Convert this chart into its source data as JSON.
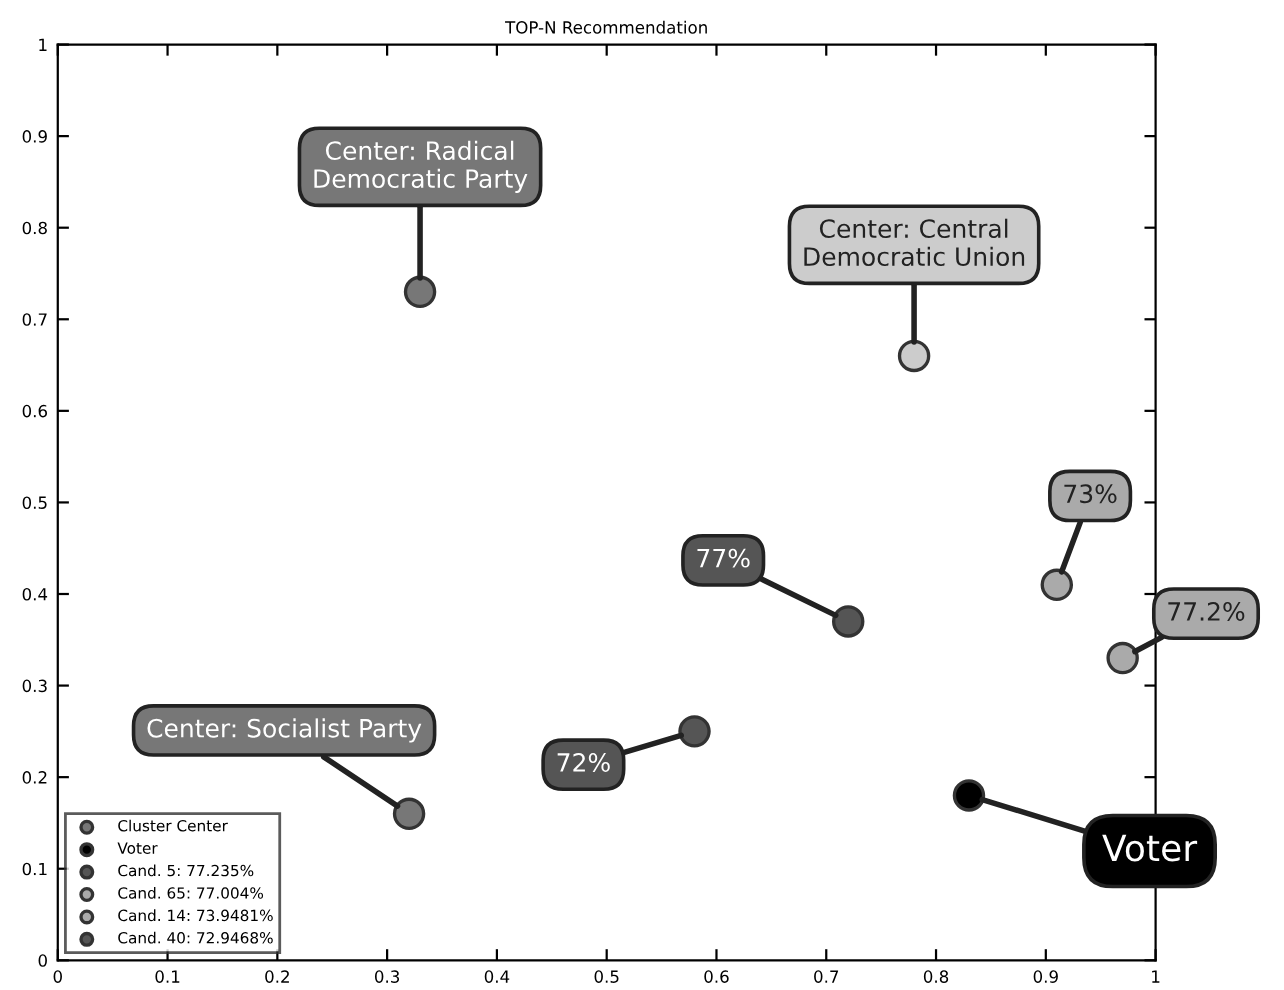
{
  "chart_data": {
    "type": "scatter",
    "title": "TOP-N Recommendation",
    "marker": "circle",
    "legend": "bottom left",
    "grid": false,
    "xlim": [
      0,
      1
    ],
    "ylim": [
      0,
      1
    ],
    "xticks": [
      0,
      0.1,
      0.2,
      0.3,
      0.4,
      0.5,
      0.6,
      0.7,
      0.8,
      0.9,
      1
    ],
    "yticks": [
      0,
      0.1,
      0.2,
      0.3,
      0.4,
      0.5,
      0.6,
      0.7,
      0.8,
      0.9,
      1
    ],
    "series": [
      {
        "name": "Cluster Center",
        "color": "#777777",
        "colors": [
          "#777777",
          "#cccccc",
          "#777777"
        ],
        "x": [
          0.33,
          0.78,
          0.32
        ],
        "values": [
          0.73,
          0.66,
          0.16
        ]
      },
      {
        "name": "Voter",
        "color": "#000000",
        "x": [
          0.83
        ],
        "values": [
          0.18
        ]
      },
      {
        "name": "Cand. 5: 77.235%",
        "color": "#555555",
        "x": [
          0.72
        ],
        "values": [
          0.37
        ]
      },
      {
        "name": "Cand. 65: 77.004%",
        "color": "#aaaaaa",
        "x": [
          0.97
        ],
        "values": [
          0.33
        ]
      },
      {
        "name": "Cand. 14: 73.9481%",
        "color": "#aaaaaa",
        "x": [
          0.91
        ],
        "values": [
          0.41
        ]
      },
      {
        "name": "Cand. 40: 72.9468%",
        "color": "#555555",
        "x": [
          0.58
        ],
        "values": [
          0.25
        ]
      }
    ],
    "annotations": [
      {
        "text": "Center: Radical\nDemocratic Party",
        "x": 0.33,
        "y": 0.73
      },
      {
        "text": "Center: Central\nDemocratic Union",
        "x": 0.78,
        "y": 0.66
      },
      {
        "text": "Center: Socialist Party",
        "x": 0.32,
        "y": 0.16
      },
      {
        "text": "Voter",
        "x": 0.83,
        "y": 0.18
      },
      {
        "text": "77%",
        "x": 0.72,
        "y": 0.37
      },
      {
        "text": "77.2%",
        "x": 0.97,
        "y": 0.33
      },
      {
        "text": "73%",
        "x": 0.91,
        "y": 0.41
      },
      {
        "text": "72%",
        "x": 0.58,
        "y": 0.25
      }
    ]
  }
}
